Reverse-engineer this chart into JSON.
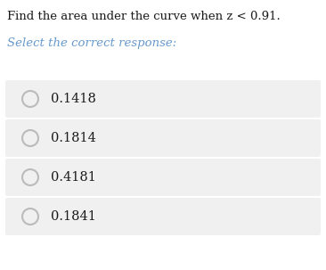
{
  "title": "Find the area under the curve when z < 0.91.",
  "subtitle": "Select the correct response:",
  "options": [
    "0.1418",
    "0.1814",
    "0.4181",
    "0.1841"
  ],
  "bg_color": "#ffffff",
  "option_box_color": "#f0f0f0",
  "title_color": "#1a1a1a",
  "subtitle_color": "#6699cc",
  "option_text_color": "#1a1a1a",
  "circle_edge_color": "#bbbbbb",
  "title_fontsize": 9.5,
  "subtitle_fontsize": 9.5,
  "option_fontsize": 10.5,
  "fig_width": 3.66,
  "fig_height": 3.03,
  "dpi": 100
}
